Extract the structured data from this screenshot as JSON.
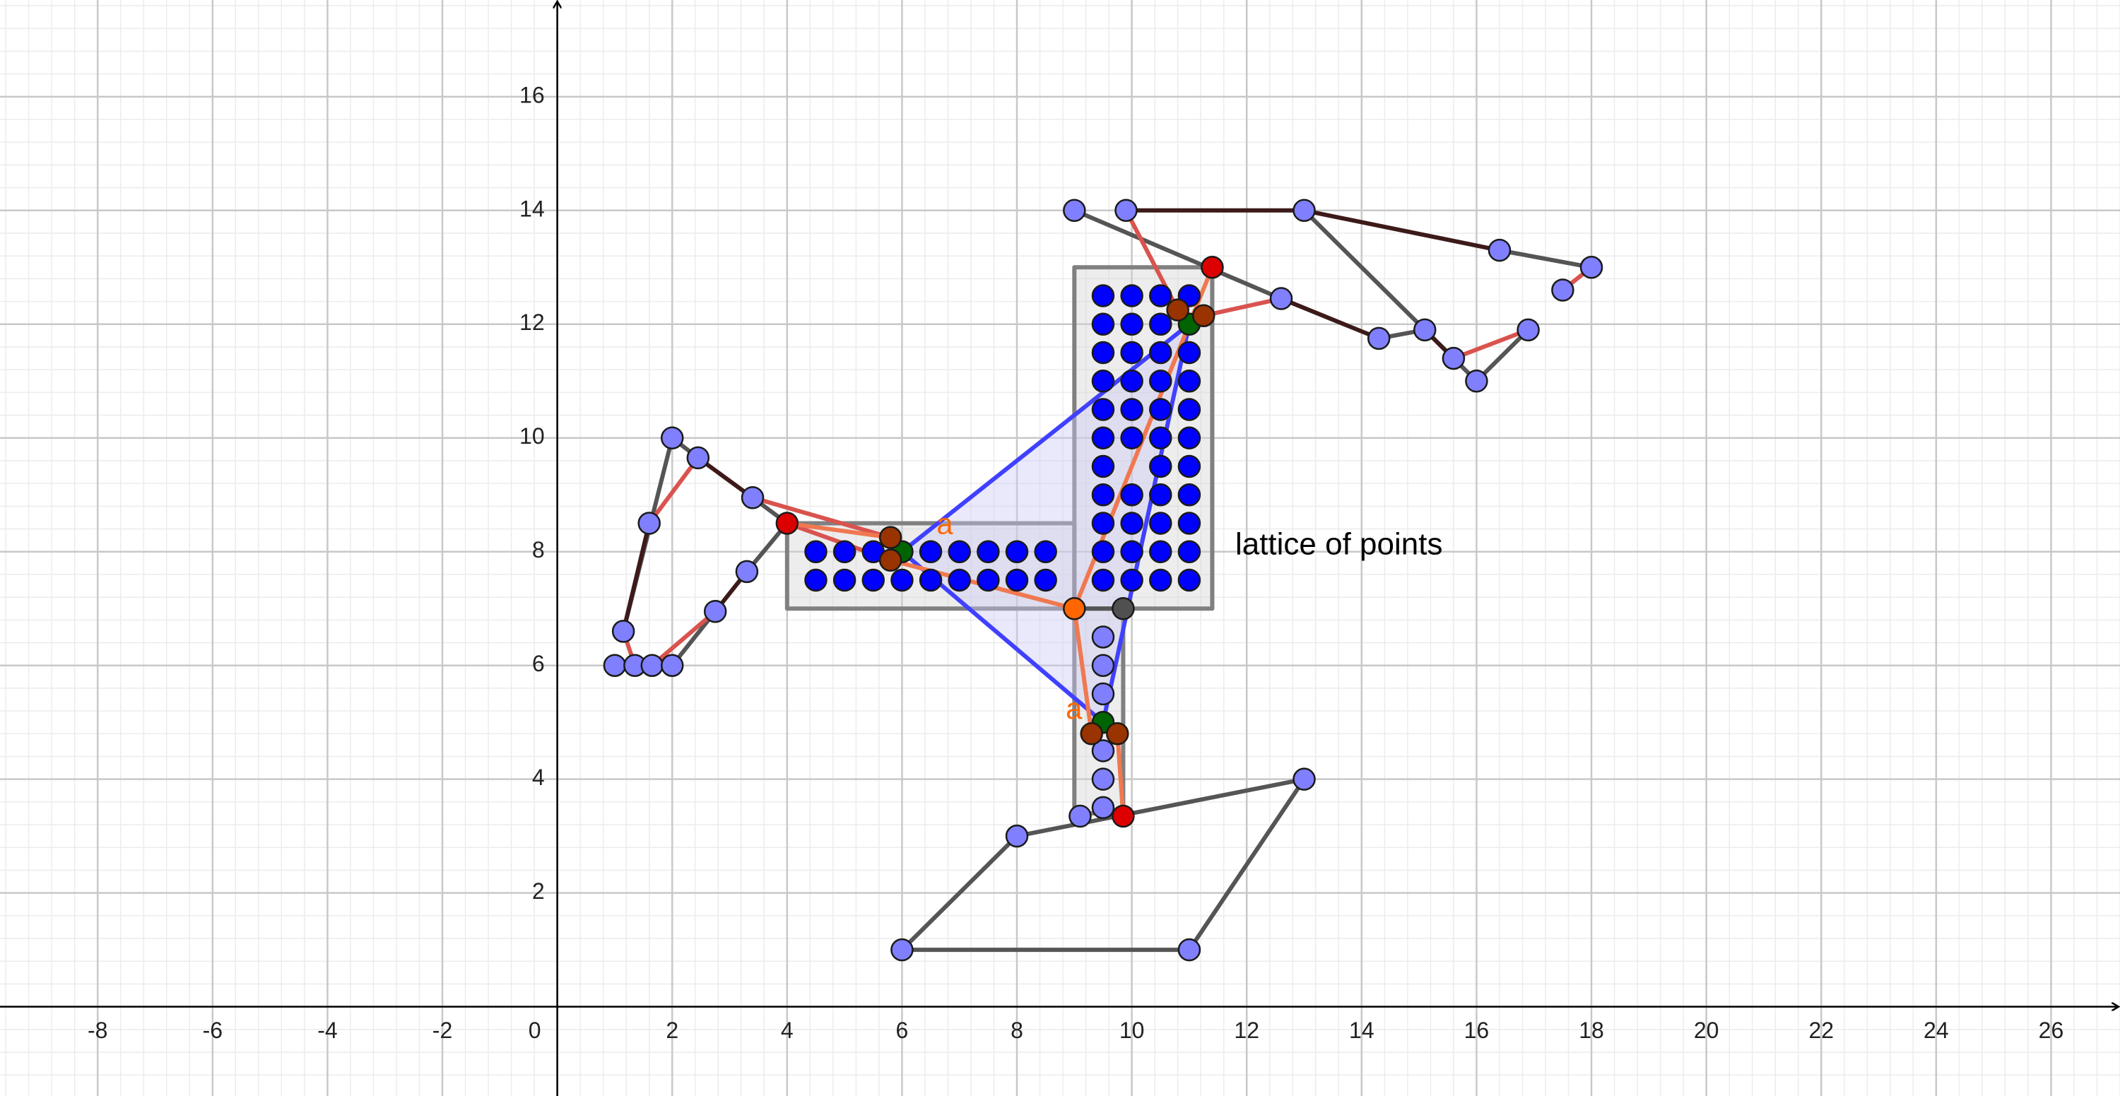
{
  "chart_data": {
    "type": "geometry",
    "xlim": [
      -9.7,
      27.2
    ],
    "ylim": [
      -1.57,
      17.7
    ],
    "xticks": [
      -8,
      -6,
      -4,
      -2,
      0,
      2,
      4,
      6,
      8,
      10,
      12,
      14,
      16,
      18,
      20,
      22,
      24,
      26
    ],
    "yticks": [
      2,
      4,
      6,
      8,
      10,
      12,
      14,
      16
    ],
    "grid": true,
    "polygons": [
      {
        "fill": "#d3d3d3",
        "stroke": "#808080",
        "points": [
          [
            9,
            7
          ],
          [
            11.4,
            7
          ],
          [
            11.4,
            13
          ],
          [
            9,
            13
          ]
        ]
      },
      {
        "fill": "#d3d3d3",
        "stroke": "#808080",
        "points": [
          [
            4,
            7
          ],
          [
            9,
            7
          ],
          [
            9,
            8.5
          ],
          [
            4,
            8.5
          ]
        ]
      },
      {
        "fill": "#d3d3d3",
        "stroke": "#808080",
        "points": [
          [
            9,
            3.4
          ],
          [
            9.85,
            3.4
          ],
          [
            9.85,
            7
          ],
          [
            9,
            7
          ]
        ]
      },
      {
        "fill": "#c8c8f5",
        "stroke": "#4040ff",
        "points": [
          [
            6,
            8
          ],
          [
            11,
            12
          ],
          [
            9.5,
            5
          ]
        ]
      }
    ],
    "segments": [
      {
        "color": "#555555",
        "points": [
          [
            6,
            1
          ],
          [
            11,
            1
          ],
          [
            13,
            4
          ],
          [
            8,
            3
          ],
          [
            6,
            1
          ]
        ]
      },
      {
        "color": "#555555",
        "points": [
          [
            9,
            14
          ],
          [
            12.6,
            12.45
          ]
        ]
      },
      {
        "color": "#555555",
        "points": [
          [
            13,
            14
          ],
          [
            16,
            11
          ],
          [
            16.9,
            11.9
          ]
        ]
      },
      {
        "color": "#555555",
        "points": [
          [
            14.3,
            11.75
          ],
          [
            15.1,
            11.9
          ],
          [
            15.6,
            11.4
          ]
        ]
      },
      {
        "color": "#555555",
        "points": [
          [
            16.4,
            13.3
          ],
          [
            18,
            13
          ]
        ]
      },
      {
        "color": "#555555",
        "points": [
          [
            1.15,
            6.6
          ],
          [
            2,
            10
          ],
          [
            2.45,
            9.65
          ]
        ]
      },
      {
        "color": "#555555",
        "points": [
          [
            3.4,
            8.95
          ],
          [
            4,
            8.5
          ],
          [
            3.3,
            7.65
          ]
        ]
      },
      {
        "color": "#555555",
        "points": [
          [
            1,
            6
          ],
          [
            2,
            6
          ],
          [
            2.75,
            6.95
          ]
        ]
      },
      {
        "color": "#555555",
        "points": [
          [
            9,
            7
          ],
          [
            9.85,
            7
          ]
        ]
      },
      {
        "color": "#3d1a1a",
        "points": [
          [
            9.9,
            14
          ],
          [
            13,
            14
          ],
          [
            16.4,
            13.3
          ]
        ]
      },
      {
        "color": "#3d1a1a",
        "points": [
          [
            12.6,
            12.45
          ],
          [
            14.3,
            11.75
          ]
        ]
      },
      {
        "color": "#3d1a1a",
        "points": [
          [
            15.1,
            11.9
          ],
          [
            15.6,
            11.4
          ]
        ]
      },
      {
        "color": "#3d1a1a",
        "points": [
          [
            2.45,
            9.65
          ],
          [
            3.4,
            8.95
          ]
        ]
      },
      {
        "color": "#3d1a1a",
        "points": [
          [
            1.6,
            8.5
          ],
          [
            1.15,
            6.6
          ]
        ]
      },
      {
        "color": "#3d1a1a",
        "points": [
          [
            2.75,
            6.95
          ],
          [
            3.3,
            7.65
          ]
        ]
      },
      {
        "color": "#d9534f",
        "points": [
          [
            9.9,
            14
          ],
          [
            10.8,
            12.25
          ]
        ]
      },
      {
        "color": "#d9534f",
        "points": [
          [
            11.25,
            12.15
          ],
          [
            12.6,
            12.45
          ]
        ]
      },
      {
        "color": "#d9534f",
        "points": [
          [
            15.6,
            11.4
          ],
          [
            16.9,
            11.9
          ]
        ]
      },
      {
        "color": "#d9534f",
        "points": [
          [
            17.5,
            12.6
          ],
          [
            18,
            13
          ]
        ]
      },
      {
        "color": "#d9534f",
        "points": [
          [
            1.6,
            8.5
          ],
          [
            2.45,
            9.65
          ]
        ]
      },
      {
        "color": "#d9534f",
        "points": [
          [
            3.4,
            8.95
          ],
          [
            5.8,
            8.25
          ]
        ]
      },
      {
        "color": "#d9534f",
        "points": [
          [
            4,
            8.5
          ],
          [
            5.8,
            7.85
          ]
        ]
      },
      {
        "color": "#d9534f",
        "points": [
          [
            1.15,
            6.6
          ],
          [
            1.35,
            6
          ]
        ]
      },
      {
        "color": "#d9534f",
        "points": [
          [
            1.65,
            6
          ],
          [
            2.75,
            6.95
          ]
        ]
      },
      {
        "color": "#f07850",
        "points": [
          [
            4,
            8.5
          ],
          [
            5.8,
            8.25
          ]
        ]
      },
      {
        "color": "#f07850",
        "points": [
          [
            5.8,
            7.85
          ],
          [
            9,
            7
          ]
        ]
      },
      {
        "color": "#f07850",
        "points": [
          [
            9,
            7
          ],
          [
            11.4,
            13
          ]
        ]
      },
      {
        "color": "#f07850",
        "points": [
          [
            9,
            7
          ],
          [
            9.3,
            4.8
          ]
        ]
      },
      {
        "color": "#f07850",
        "points": [
          [
            9.75,
            4.8
          ],
          [
            9.85,
            3.35
          ]
        ]
      }
    ],
    "point_groups": [
      {
        "color": "#0000ff",
        "points": [
          [
            9.5,
            12.5
          ],
          [
            10,
            12.5
          ],
          [
            10.5,
            12.5
          ],
          [
            11,
            12.5
          ],
          [
            9.5,
            12
          ],
          [
            10,
            12
          ],
          [
            10.5,
            12
          ],
          [
            9.5,
            11.5
          ],
          [
            10,
            11.5
          ],
          [
            10.5,
            11.5
          ],
          [
            11,
            11.5
          ],
          [
            9.5,
            11
          ],
          [
            10,
            11
          ],
          [
            10.5,
            11
          ],
          [
            11,
            11
          ],
          [
            9.5,
            10.5
          ],
          [
            10,
            10.5
          ],
          [
            10.5,
            10.5
          ],
          [
            11,
            10.5
          ],
          [
            9.5,
            10
          ],
          [
            10,
            10
          ],
          [
            10.5,
            10
          ],
          [
            11,
            10
          ],
          [
            9.5,
            9.5
          ],
          [
            10.5,
            9.5
          ],
          [
            11,
            9.5
          ],
          [
            9.5,
            9
          ],
          [
            10,
            9
          ],
          [
            10.5,
            9
          ],
          [
            11,
            9
          ],
          [
            9.5,
            8.5
          ],
          [
            10,
            8.5
          ],
          [
            10.5,
            8.5
          ],
          [
            11,
            8.5
          ],
          [
            9.5,
            8
          ],
          [
            10,
            8
          ],
          [
            10.5,
            8
          ],
          [
            11,
            8
          ],
          [
            9.5,
            7.5
          ],
          [
            10,
            7.5
          ],
          [
            10.5,
            7.5
          ],
          [
            11,
            7.5
          ],
          [
            4.5,
            8
          ],
          [
            5,
            8
          ],
          [
            5.5,
            8
          ],
          [
            6.5,
            8
          ],
          [
            7,
            8
          ],
          [
            7.5,
            8
          ],
          [
            8,
            8
          ],
          [
            8.5,
            8
          ],
          [
            4.5,
            7.5
          ],
          [
            5,
            7.5
          ],
          [
            5.5,
            7.5
          ],
          [
            6,
            7.5
          ],
          [
            6.5,
            7.5
          ],
          [
            7,
            7.5
          ],
          [
            7.5,
            7.5
          ],
          [
            8,
            7.5
          ],
          [
            8.5,
            7.5
          ]
        ]
      },
      {
        "color": "#8080ff",
        "points": [
          [
            9,
            14
          ],
          [
            9.9,
            14
          ],
          [
            13,
            14
          ],
          [
            16.4,
            13.3
          ],
          [
            18,
            13
          ],
          [
            17.5,
            12.6
          ],
          [
            16.9,
            11.9
          ],
          [
            16,
            11
          ],
          [
            15.6,
            11.4
          ],
          [
            15.1,
            11.9
          ],
          [
            14.3,
            11.75
          ],
          [
            12.6,
            12.45
          ],
          [
            2,
            10
          ],
          [
            2.45,
            9.65
          ],
          [
            3.4,
            8.95
          ],
          [
            1.6,
            8.5
          ],
          [
            1.15,
            6.6
          ],
          [
            1,
            6
          ],
          [
            1.35,
            6
          ],
          [
            1.65,
            6
          ],
          [
            2,
            6
          ],
          [
            2.75,
            6.95
          ],
          [
            3.3,
            7.65
          ],
          [
            6,
            1
          ],
          [
            11,
            1
          ],
          [
            13,
            4
          ],
          [
            8,
            3
          ],
          [
            9.1,
            3.35
          ],
          [
            9.5,
            6.5
          ],
          [
            9.5,
            6
          ],
          [
            9.5,
            5.5
          ],
          [
            9.5,
            4.5
          ],
          [
            9.5,
            4
          ],
          [
            9.5,
            3.5
          ]
        ]
      },
      {
        "color": "#dd0000",
        "points": [
          [
            4,
            8.5
          ],
          [
            11.4,
            13
          ],
          [
            9.85,
            3.35
          ]
        ]
      },
      {
        "color": "#ff6600",
        "points": [
          [
            9,
            7
          ]
        ]
      },
      {
        "color": "#505050",
        "points": [
          [
            9.85,
            7
          ]
        ]
      },
      {
        "color": "#006400",
        "points": [
          [
            6,
            8
          ],
          [
            11,
            12
          ],
          [
            9.5,
            5
          ]
        ]
      },
      {
        "color": "#993300",
        "points": [
          [
            5.8,
            8.25
          ],
          [
            5.8,
            7.85
          ],
          [
            10.8,
            12.25
          ],
          [
            11.25,
            12.15
          ],
          [
            9.3,
            4.8
          ],
          [
            9.75,
            4.8
          ]
        ]
      }
    ],
    "texts": [
      {
        "text": "lattice of points",
        "x": 11.8,
        "y": 8.1,
        "color": "#000000"
      },
      {
        "text": "a",
        "x": 6.6,
        "y": 8.45,
        "color": "#ff6600"
      },
      {
        "text": "a",
        "x": 8.85,
        "y": 5.2,
        "color": "#ff6600"
      }
    ]
  }
}
